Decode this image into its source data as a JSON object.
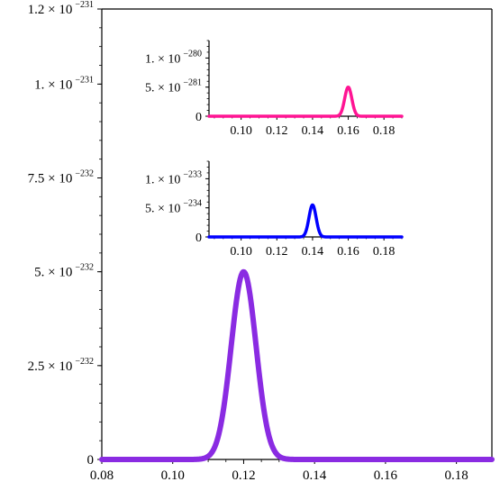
{
  "chart_data": [
    {
      "id": "main",
      "type": "line",
      "xlim": [
        0.08,
        0.19
      ],
      "ylim": [
        0,
        1.2e-231
      ],
      "x_ticks": [
        {
          "v": 0.08,
          "label": "0.08"
        },
        {
          "v": 0.1,
          "label": "0.10"
        },
        {
          "v": 0.12,
          "label": "0.12"
        },
        {
          "v": 0.14,
          "label": "0.14"
        },
        {
          "v": 0.16,
          "label": "0.16"
        },
        {
          "v": 0.18,
          "label": "0.18"
        }
      ],
      "y_ticks": [
        {
          "v": 0,
          "mant": "0",
          "exp": ""
        },
        {
          "v": 2.5e-232,
          "mant": "2.5 × 10",
          "exp": "−232"
        },
        {
          "v": 5e-232,
          "mant": "5. × 10",
          "exp": "−232"
        },
        {
          "v": 7.5e-232,
          "mant": "7.5 × 10",
          "exp": "−232"
        },
        {
          "v": 1e-231,
          "mant": "1. × 10",
          "exp": "−231"
        },
        {
          "v": 1.2e-231,
          "mant": "1.2 × 10",
          "exp": "−231"
        }
      ],
      "series": [
        {
          "color": "#8a2be2",
          "peak_x": 0.12,
          "peak_y": 5e-232,
          "width": 0.0035
        }
      ],
      "grid": false
    },
    {
      "id": "inset-top",
      "type": "line",
      "xlim": [
        0.082,
        0.19
      ],
      "ylim": [
        0,
        1.3e-280
      ],
      "x_ticks": [
        {
          "v": 0.1,
          "label": "0.10"
        },
        {
          "v": 0.12,
          "label": "0.12"
        },
        {
          "v": 0.14,
          "label": "0.14"
        },
        {
          "v": 0.16,
          "label": "0.16"
        },
        {
          "v": 0.18,
          "label": "0.18"
        }
      ],
      "y_ticks": [
        {
          "v": 0,
          "mant": "0",
          "exp": ""
        },
        {
          "v": 5e-281,
          "mant": "5. × 10",
          "exp": "−281"
        },
        {
          "v": 1e-280,
          "mant": "1. × 10",
          "exp": "−280"
        }
      ],
      "series": [
        {
          "color": "#ff1493",
          "peak_x": 0.16,
          "peak_y": 5e-281,
          "width": 0.002
        }
      ],
      "grid": false
    },
    {
      "id": "inset-bottom",
      "type": "line",
      "xlim": [
        0.082,
        0.19
      ],
      "ylim": [
        0,
        1.3e-233
      ],
      "x_ticks": [
        {
          "v": 0.1,
          "label": "0.10"
        },
        {
          "v": 0.12,
          "label": "0.12"
        },
        {
          "v": 0.14,
          "label": "0.14"
        },
        {
          "v": 0.16,
          "label": "0.16"
        },
        {
          "v": 0.18,
          "label": "0.18"
        }
      ],
      "y_ticks": [
        {
          "v": 0,
          "mant": "0",
          "exp": ""
        },
        {
          "v": 5e-234,
          "mant": "5. × 10",
          "exp": "−234"
        },
        {
          "v": 1e-233,
          "mant": "1. × 10",
          "exp": "−233"
        }
      ],
      "series": [
        {
          "color": "#0000ff",
          "peak_x": 0.14,
          "peak_y": 5.5e-234,
          "width": 0.002
        }
      ],
      "grid": false
    }
  ]
}
